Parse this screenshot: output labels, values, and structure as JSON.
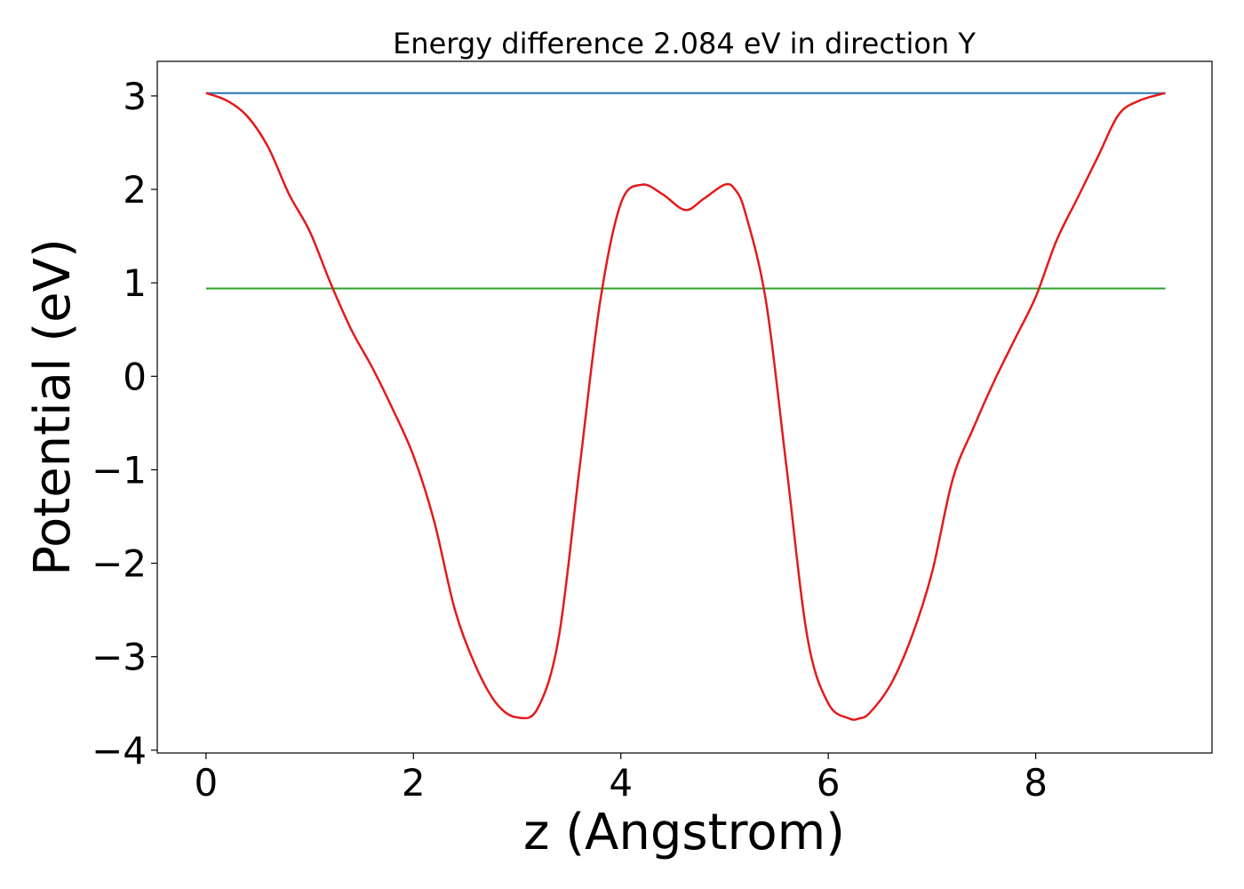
{
  "chart_data": {
    "type": "line",
    "title": "Energy difference 2.084 eV in direction Y",
    "xlabel": "z (Angstrom)",
    "ylabel": "Potential (eV)",
    "xlim": [
      -0.47,
      9.7
    ],
    "ylim": [
      -4.03,
      3.37
    ],
    "grid": false,
    "legend": "none",
    "x_ticks": [
      0,
      2,
      4,
      6,
      8
    ],
    "x_tick_labels": [
      "0",
      "2",
      "4",
      "6",
      "8"
    ],
    "y_ticks": [
      3,
      2,
      1,
      0,
      -1,
      -2,
      -3,
      -4
    ],
    "y_tick_labels": [
      "3",
      "2",
      "1",
      "0",
      "−1",
      "−2",
      "−3",
      "−4"
    ],
    "colors": {
      "potential": "#e31a1c",
      "upper_level": "#1f77b4",
      "lower_level": "#2ca02c"
    },
    "series": [
      {
        "x": [
          0,
          0.2,
          0.4,
          0.6,
          0.8,
          1.0,
          1.2,
          1.4,
          1.6,
          1.8,
          2.0,
          2.2,
          2.4,
          2.6,
          2.8,
          3.0,
          3.2,
          3.4,
          3.6,
          3.8,
          4.0,
          4.2,
          4.4,
          4.62,
          4.8,
          5.0,
          5.1,
          5.2,
          5.4,
          5.6,
          5.8,
          6.0,
          6.2,
          6.3,
          6.4,
          6.6,
          6.8,
          7.0,
          7.2,
          7.4,
          7.6,
          7.8,
          8.0,
          8.2,
          8.4,
          8.6,
          8.8,
          9.0,
          9.25
        ],
        "y": [
          3.03,
          2.95,
          2.78,
          2.45,
          1.95,
          1.55,
          1.0,
          0.5,
          0.1,
          -0.35,
          -0.85,
          -1.55,
          -2.5,
          -3.1,
          -3.5,
          -3.65,
          -3.55,
          -2.8,
          -1.0,
          0.8,
          1.85,
          2.05,
          1.95,
          1.78,
          1.9,
          2.05,
          2.0,
          1.75,
          0.8,
          -1.0,
          -2.8,
          -3.5,
          -3.66,
          -3.66,
          -3.6,
          -3.3,
          -2.8,
          -2.1,
          -1.1,
          -0.55,
          -0.05,
          0.4,
          0.85,
          1.45,
          1.9,
          2.35,
          2.8,
          2.95,
          3.03
        ]
      },
      {
        "x": [
          0,
          9.25
        ],
        "y": [
          3.03,
          3.03
        ]
      },
      {
        "x": [
          0,
          9.25
        ],
        "y": [
          0.94,
          0.94
        ]
      }
    ]
  }
}
